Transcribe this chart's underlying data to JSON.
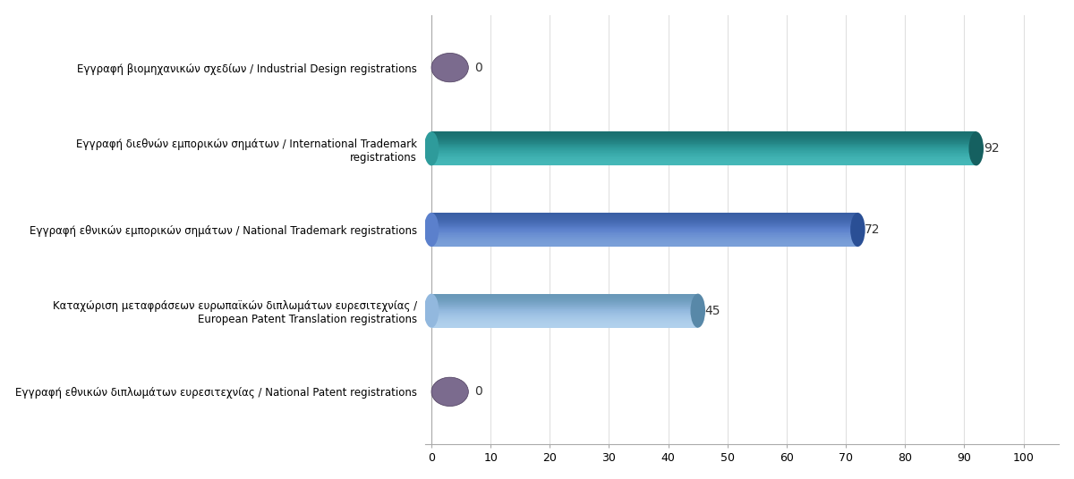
{
  "categories": [
    "Εγγραφή εθνικών διπλωμάτων ευρεσιτεχνίας / National Patent registrations",
    "Καταχώριση μεταφράσεων ευρωπαϊκών διπλωμάτων ευρεσιτεχνίας /\nEuropean Patent Translation registrations",
    "Εγγραφή εθνικών εμπορικών σημάτων / National Trademark registrations",
    "Εγγραφή διεθνών εμπορικών σημάτων / International Trademark\nregistrations",
    "Εγγραφή βιομηχανικών σχεδίων / Industrial Design registrations"
  ],
  "values": [
    0,
    92,
    72,
    45,
    0
  ],
  "bar_colors_mid": [
    "#7b6b8e",
    "#2e9b9b",
    "#5b80cc",
    "#92b8de",
    "#7b6b8e"
  ],
  "bar_colors_top": [
    "#9985a8",
    "#45b8b8",
    "#7a9fd8",
    "#b0d0ec",
    "#9985a8"
  ],
  "bar_colors_bot": [
    "#5a4a6b",
    "#1a7070",
    "#3a5fa5",
    "#6898b8",
    "#5a4a6b"
  ],
  "bar_colors_end": [
    "#4a3a5a",
    "#156060",
    "#2a4f95",
    "#5888a8",
    "#4a3a5a"
  ],
  "xlim": [
    0,
    100
  ],
  "xticks": [
    0,
    10,
    20,
    30,
    40,
    50,
    60,
    70,
    80,
    90,
    100
  ],
  "background_color": "#ffffff",
  "grid_color": "#dddddd",
  "label_fontsize": 8.5,
  "value_fontsize": 10
}
